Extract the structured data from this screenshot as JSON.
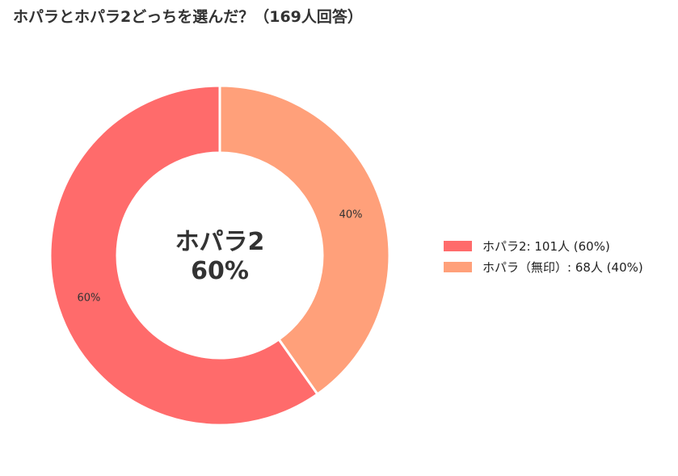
{
  "title": "ホパラとホパラ2どっちを選んだ？（169人回答）",
  "chart_data": {
    "type": "pie",
    "donut": true,
    "title": "ホパラとホパラ2どっちを選んだ？（169人回答）",
    "center_label": {
      "name": "ホパラ2",
      "percent": "60%"
    },
    "slices": [
      {
        "category": "ホパラ2",
        "value": 101,
        "percent_label": "60%",
        "legend_label": "ホパラ2:  101人 (60%)",
        "color": "#ff6b6b"
      },
      {
        "category": "ホパラ（無印）",
        "value": 68,
        "percent_label": "40%",
        "legend_label": "ホパラ（無印）:  68人 (40%)",
        "color": "#ffa07a"
      }
    ],
    "legend_position": "right"
  }
}
